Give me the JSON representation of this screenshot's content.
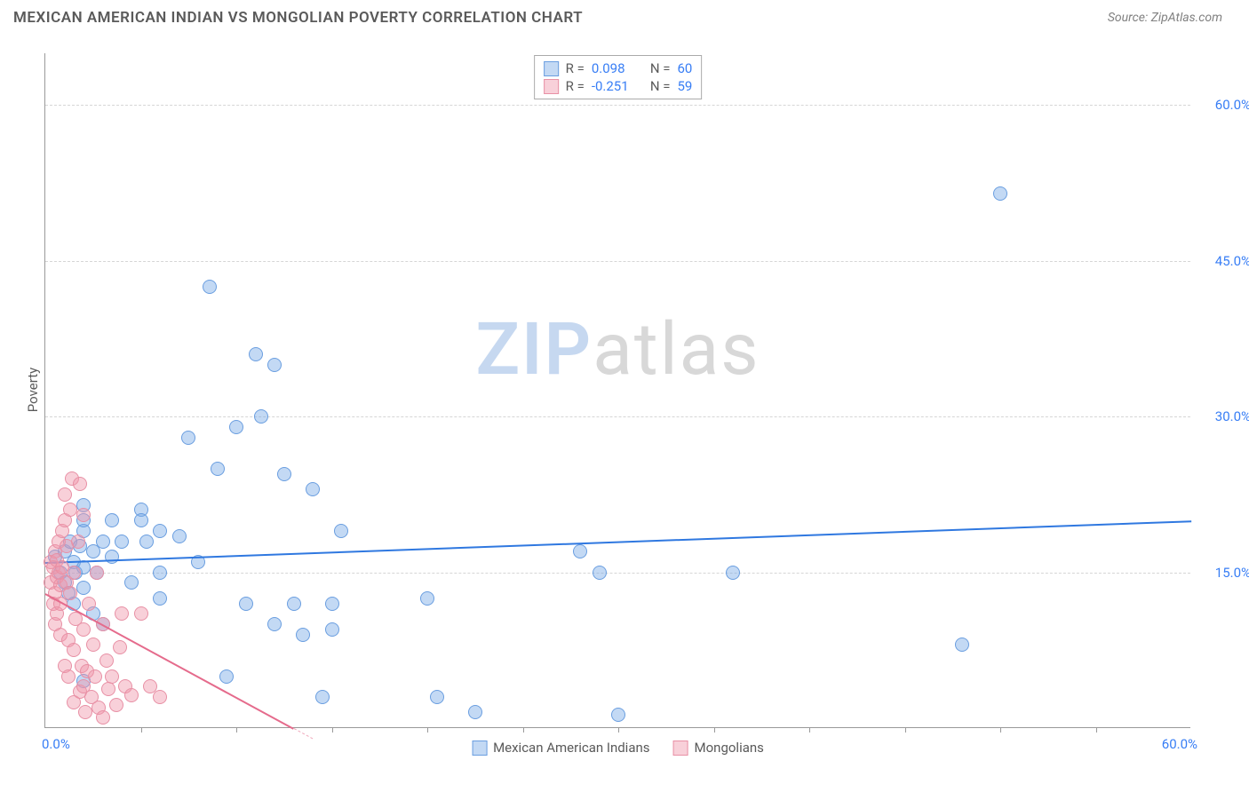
{
  "header": {
    "title": "MEXICAN AMERICAN INDIAN VS MONGOLIAN POVERTY CORRELATION CHART",
    "source": "Source: ZipAtlas.com"
  },
  "watermark": {
    "a": "ZIP",
    "b": "atlas"
  },
  "chart": {
    "type": "scatter",
    "background_color": "#ffffff",
    "grid_color": "#d6d6d6",
    "axis_color": "#999999",
    "y_axis_title": "Poverty",
    "xlim": [
      0,
      60
    ],
    "ylim": [
      0,
      65
    ],
    "y_ticks": [
      {
        "v": 15,
        "label": "15.0%"
      },
      {
        "v": 30,
        "label": "30.0%"
      },
      {
        "v": 45,
        "label": "45.0%"
      },
      {
        "v": 60,
        "label": "60.0%"
      }
    ],
    "x_left_label": "0.0%",
    "x_right_label": "60.0%",
    "x_ticks_minor": [
      5,
      10,
      15,
      20,
      25,
      30,
      35,
      40,
      45,
      50,
      55
    ],
    "series": [
      {
        "name": "Mexican American Indians",
        "fill": "rgba(122,171,230,0.45)",
        "stroke": "#6a9ee0",
        "trend_color": "#2f78e0",
        "trend_dash_color": "#7aabE6",
        "marker_radius": 8,
        "R": "0.098",
        "N": "60",
        "trend": {
          "x1": 0,
          "y1": 16,
          "x2": 60,
          "y2": 20
        },
        "points": [
          [
            0.5,
            16.5
          ],
          [
            0.8,
            15
          ],
          [
            1,
            14
          ],
          [
            1,
            17
          ],
          [
            1.2,
            13
          ],
          [
            1.3,
            18
          ],
          [
            1.5,
            12
          ],
          [
            1.5,
            16
          ],
          [
            1.6,
            15
          ],
          [
            1.8,
            17.5
          ],
          [
            2,
            13.5
          ],
          [
            2,
            19
          ],
          [
            2,
            15.5
          ],
          [
            2,
            4.5
          ],
          [
            2,
            20
          ],
          [
            2,
            21.5
          ],
          [
            2.5,
            11
          ],
          [
            2.5,
            17
          ],
          [
            2.7,
            15
          ],
          [
            3,
            18
          ],
          [
            3,
            10
          ],
          [
            3.5,
            16.5
          ],
          [
            3.5,
            20
          ],
          [
            4,
            18
          ],
          [
            4.5,
            14
          ],
          [
            5,
            21
          ],
          [
            5,
            20
          ],
          [
            5.3,
            18
          ],
          [
            6,
            15
          ],
          [
            6,
            19
          ],
          [
            6,
            12.5
          ],
          [
            7,
            18.5
          ],
          [
            7.5,
            28
          ],
          [
            8,
            16
          ],
          [
            8.6,
            42.5
          ],
          [
            9,
            25
          ],
          [
            9.5,
            5
          ],
          [
            10,
            29
          ],
          [
            10.5,
            12
          ],
          [
            11,
            36
          ],
          [
            11.3,
            30
          ],
          [
            12,
            35
          ],
          [
            12,
            10
          ],
          [
            12.5,
            24.5
          ],
          [
            13,
            12
          ],
          [
            13.5,
            9
          ],
          [
            14,
            23
          ],
          [
            14.5,
            3
          ],
          [
            15,
            9.5
          ],
          [
            15,
            12
          ],
          [
            15.5,
            19
          ],
          [
            20,
            12.5
          ],
          [
            20.5,
            3
          ],
          [
            22.5,
            1.5
          ],
          [
            28,
            17
          ],
          [
            29,
            15
          ],
          [
            30,
            1.3
          ],
          [
            36,
            15
          ],
          [
            48,
            8
          ],
          [
            50,
            51.5
          ]
        ]
      },
      {
        "name": "Mongolians",
        "fill": "rgba(240,150,170,0.45)",
        "stroke": "#e890a5",
        "trend_color": "#e56b8c",
        "trend_dash_color": "#f0a8bb",
        "marker_radius": 8,
        "R": "-0.251",
        "N": "59",
        "trend": {
          "x1": 0,
          "y1": 13,
          "x2": 13,
          "y2": 0
        },
        "points": [
          [
            0.3,
            14
          ],
          [
            0.3,
            16
          ],
          [
            0.4,
            12
          ],
          [
            0.4,
            15.5
          ],
          [
            0.5,
            10
          ],
          [
            0.5,
            13
          ],
          [
            0.5,
            17
          ],
          [
            0.6,
            11
          ],
          [
            0.6,
            14.5
          ],
          [
            0.6,
            16.2
          ],
          [
            0.7,
            18
          ],
          [
            0.7,
            15
          ],
          [
            0.8,
            9
          ],
          [
            0.8,
            13.8
          ],
          [
            0.8,
            12
          ],
          [
            0.9,
            19
          ],
          [
            0.9,
            15.5
          ],
          [
            1,
            20
          ],
          [
            1,
            22.5
          ],
          [
            1,
            6
          ],
          [
            1.1,
            14
          ],
          [
            1.1,
            17.5
          ],
          [
            1.2,
            5
          ],
          [
            1.2,
            8.5
          ],
          [
            1.3,
            21
          ],
          [
            1.3,
            13
          ],
          [
            1.4,
            24
          ],
          [
            1.5,
            7.5
          ],
          [
            1.5,
            15
          ],
          [
            1.5,
            2.5
          ],
          [
            1.6,
            10.5
          ],
          [
            1.7,
            18
          ],
          [
            1.8,
            23.5
          ],
          [
            1.8,
            3.5
          ],
          [
            1.9,
            6
          ],
          [
            2,
            4
          ],
          [
            2,
            9.5
          ],
          [
            2,
            20.5
          ],
          [
            2.1,
            1.5
          ],
          [
            2.2,
            5.5
          ],
          [
            2.3,
            12
          ],
          [
            2.4,
            3
          ],
          [
            2.5,
            8
          ],
          [
            2.6,
            5
          ],
          [
            2.7,
            15
          ],
          [
            2.8,
            2
          ],
          [
            3,
            1
          ],
          [
            3,
            10
          ],
          [
            3.2,
            6.5
          ],
          [
            3.3,
            3.8
          ],
          [
            3.5,
            5
          ],
          [
            3.7,
            2.2
          ],
          [
            3.9,
            7.8
          ],
          [
            4,
            11
          ],
          [
            4.2,
            4
          ],
          [
            4.5,
            3.2
          ],
          [
            5,
            11
          ],
          [
            5.5,
            4
          ],
          [
            6,
            3
          ]
        ]
      }
    ],
    "legend_top": {
      "rows": [
        {
          "swatch_fill": "rgba(122,171,230,0.45)",
          "swatch_border": "#6a9ee0",
          "R_label": "R =",
          "R": "0.098",
          "N_label": "N =",
          "N": "60"
        },
        {
          "swatch_fill": "rgba(240,150,170,0.45)",
          "swatch_border": "#e890a5",
          "R_label": "R =",
          "R": "-0.251",
          "N_label": "N =",
          "N": "59"
        }
      ]
    },
    "legend_bottom": [
      {
        "swatch_fill": "rgba(122,171,230,0.45)",
        "swatch_border": "#6a9ee0",
        "label": "Mexican American Indians"
      },
      {
        "swatch_fill": "rgba(240,150,170,0.45)",
        "swatch_border": "#e890a5",
        "label": "Mongolians"
      }
    ]
  }
}
